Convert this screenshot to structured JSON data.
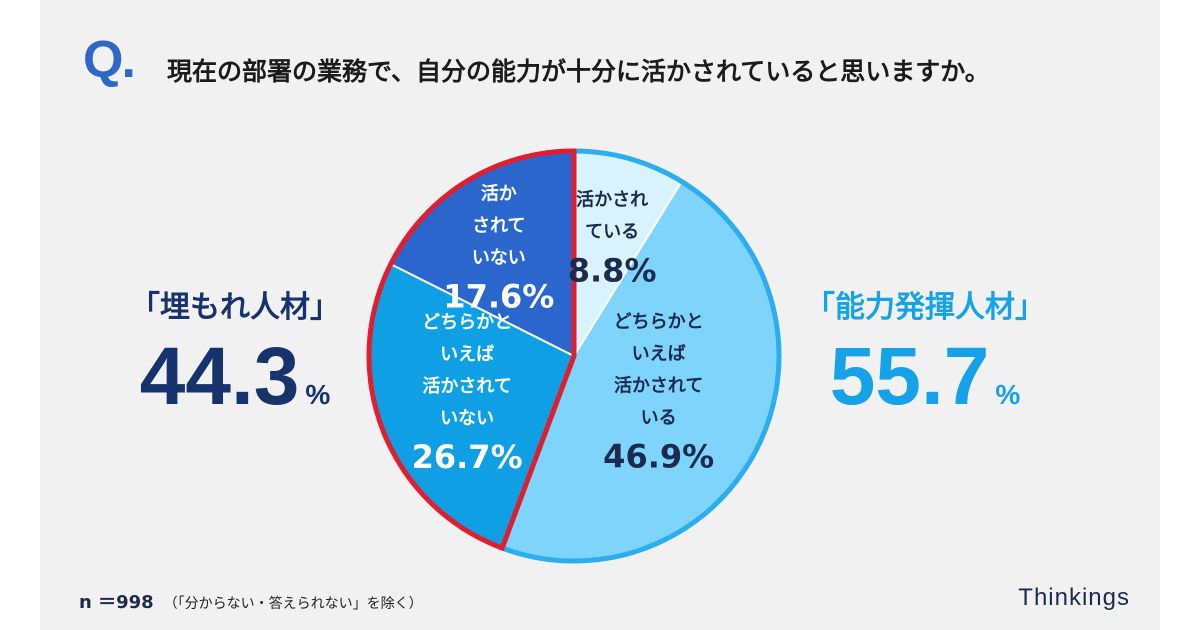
{
  "title": {
    "q_mark": "Q.",
    "question": "現在の部署の業務で、自分の能力が十分に活かされていると思いますか。"
  },
  "groups": {
    "left": {
      "label": "「埋もれ人材」",
      "value": "44.3",
      "unit": "%",
      "color": "#16336e"
    },
    "right": {
      "label": "「能力発揮人材」",
      "value": "55.7",
      "unit": "%",
      "color": "#16a2e8"
    }
  },
  "footer": {
    "n": "n ＝998",
    "note": "（「分からない・答えられない」を除く）",
    "brand": "Thinkings"
  },
  "colors": {
    "outline_left_group": "#e01e2d",
    "outline_right_group": "#2aaef0"
  },
  "chart_data": {
    "type": "pie",
    "start": "12 o'clock",
    "direction": "clockwise",
    "slices": [
      {
        "label": "活かされている",
        "lines": [
          "活かされ",
          "ている"
        ],
        "value": 8.8,
        "text": "8.8%",
        "color": "#d9f3fe",
        "text_color": "#1c2a4e",
        "group": "right"
      },
      {
        "label": "どちらかといえば活かされている",
        "lines": [
          "どちらかと",
          "いえば",
          "活かされて",
          "いる"
        ],
        "value": 46.9,
        "text": "46.9%",
        "color": "#7fd4fb",
        "text_color": "#1c2a4e",
        "group": "right"
      },
      {
        "label": "どちらかといえば活かされていない",
        "lines": [
          "どちらかと",
          "いえば",
          "活かされて",
          "いない"
        ],
        "value": 26.7,
        "text": "26.7%",
        "color": "#0e9fe5",
        "text_color": "#ffffff",
        "group": "left"
      },
      {
        "label": "活かされていない",
        "lines": [
          "活か",
          "されて",
          "いない"
        ],
        "value": 17.6,
        "text": "17.6%",
        "color": "#2a66cc",
        "text_color": "#ffffff",
        "group": "left"
      }
    ]
  }
}
